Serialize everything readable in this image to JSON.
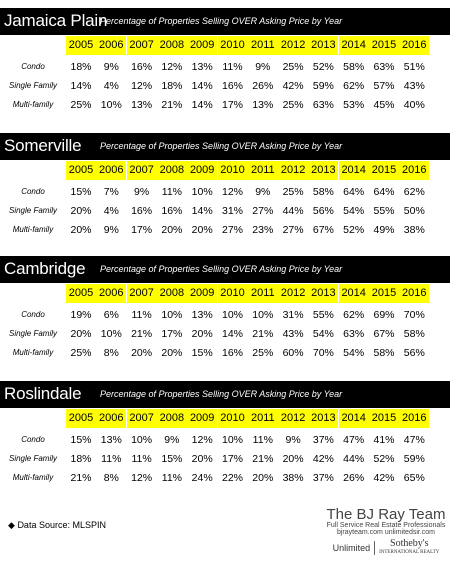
{
  "subtitle": "Percentage of Properties Selling OVER Asking Price by Year",
  "years": [
    "2005",
    "2006",
    "2007",
    "2008",
    "2009",
    "2010",
    "2011",
    "2012",
    "2013",
    "2014",
    "2015",
    "2016"
  ],
  "colors": {
    "title_bar": "#000000",
    "year_highlight": "#ffff00"
  },
  "chart_data": [
    {
      "type": "table",
      "title": "Jamaica Plain",
      "rows": [
        {
          "label": "Condo",
          "values": [
            "18%",
            "9%",
            "16%",
            "12%",
            "13%",
            "11%",
            "9%",
            "25%",
            "52%",
            "58%",
            "63%",
            "51%"
          ]
        },
        {
          "label": "Single Family",
          "values": [
            "14%",
            "4%",
            "12%",
            "18%",
            "14%",
            "16%",
            "26%",
            "42%",
            "59%",
            "62%",
            "57%",
            "43%"
          ]
        },
        {
          "label": "Multi-family",
          "values": [
            "25%",
            "10%",
            "13%",
            "21%",
            "14%",
            "17%",
            "13%",
            "25%",
            "63%",
            "53%",
            "45%",
            "40%"
          ]
        }
      ]
    },
    {
      "type": "table",
      "title": "Somerville",
      "rows": [
        {
          "label": "Condo",
          "values": [
            "15%",
            "7%",
            "9%",
            "11%",
            "10%",
            "12%",
            "9%",
            "25%",
            "58%",
            "64%",
            "64%",
            "62%"
          ]
        },
        {
          "label": "Single Family",
          "values": [
            "20%",
            "4%",
            "16%",
            "16%",
            "14%",
            "31%",
            "27%",
            "44%",
            "56%",
            "54%",
            "55%",
            "50%"
          ]
        },
        {
          "label": "Multi-family",
          "values": [
            "20%",
            "9%",
            "17%",
            "20%",
            "20%",
            "27%",
            "23%",
            "27%",
            "67%",
            "52%",
            "49%",
            "38%"
          ]
        }
      ]
    },
    {
      "type": "table",
      "title": "Cambridge",
      "rows": [
        {
          "label": "Condo",
          "values": [
            "19%",
            "6%",
            "11%",
            "10%",
            "13%",
            "10%",
            "10%",
            "31%",
            "55%",
            "62%",
            "69%",
            "70%"
          ]
        },
        {
          "label": "Single Family",
          "values": [
            "20%",
            "10%",
            "21%",
            "17%",
            "20%",
            "14%",
            "21%",
            "43%",
            "54%",
            "63%",
            "67%",
            "58%"
          ]
        },
        {
          "label": "Multi-family",
          "values": [
            "25%",
            "8%",
            "20%",
            "20%",
            "15%",
            "16%",
            "25%",
            "60%",
            "70%",
            "54%",
            "58%",
            "56%"
          ]
        }
      ]
    },
    {
      "type": "table",
      "title": "Roslindale",
      "rows": [
        {
          "label": "Condo",
          "values": [
            "15%",
            "13%",
            "10%",
            "9%",
            "12%",
            "10%",
            "11%",
            "9%",
            "37%",
            "47%",
            "41%",
            "47%"
          ]
        },
        {
          "label": "Single Family",
          "values": [
            "18%",
            "11%",
            "11%",
            "15%",
            "20%",
            "17%",
            "21%",
            "20%",
            "42%",
            "44%",
            "52%",
            "59%"
          ]
        },
        {
          "label": "Multi-family",
          "values": [
            "21%",
            "8%",
            "12%",
            "11%",
            "24%",
            "22%",
            "20%",
            "38%",
            "37%",
            "26%",
            "42%",
            "65%"
          ]
        }
      ]
    }
  ],
  "footer": {
    "source": "Data Source:  MLSPIN",
    "brand_name": "The BJ Ray Team",
    "brand_tagline": "Full Service Real Estate Professionals",
    "brand_urls": "bjrayteam.com    unlimitedsir.com",
    "logo_left": "Unlimited",
    "logo_right": "Sotheby's",
    "logo_right_sub": "INTERNATIONAL REALTY"
  }
}
